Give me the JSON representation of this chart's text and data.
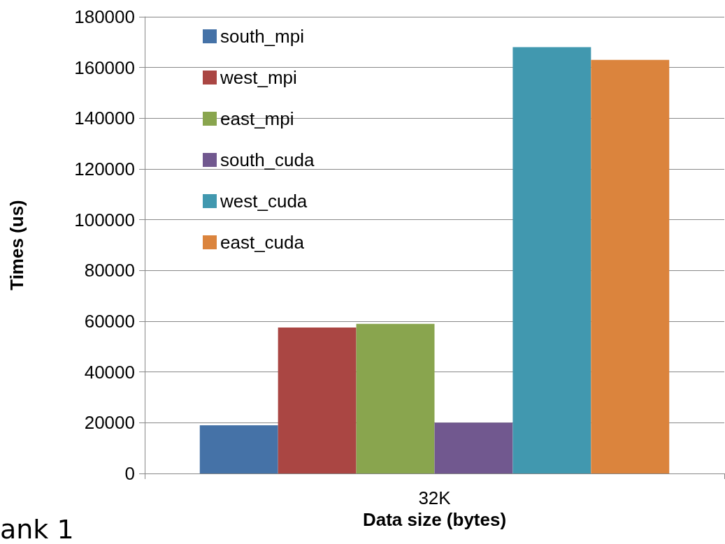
{
  "chart_data": {
    "type": "bar",
    "categories": [
      "32K"
    ],
    "xlabel": "Data size (bytes)",
    "ylabel": "Times (us)",
    "series": [
      {
        "name": "south_mpi",
        "color": "#4572a7",
        "values": [
          19000
        ]
      },
      {
        "name": "west_mpi",
        "color": "#aa4643",
        "values": [
          57500
        ]
      },
      {
        "name": "east_mpi",
        "color": "#89a54e",
        "values": [
          59000
        ]
      },
      {
        "name": "south_cuda",
        "color": "#71588f",
        "values": [
          20000
        ]
      },
      {
        "name": "west_cuda",
        "color": "#4198af",
        "values": [
          168000
        ]
      },
      {
        "name": "east_cuda",
        "color": "#db843d",
        "values": [
          163000
        ]
      }
    ],
    "ylim": [
      0,
      180000
    ],
    "yticks": [
      0,
      20000,
      40000,
      60000,
      80000,
      100000,
      120000,
      140000,
      160000,
      180000
    ],
    "grid": "y",
    "legend": "top left",
    "annotations": [
      "ank 1"
    ]
  }
}
